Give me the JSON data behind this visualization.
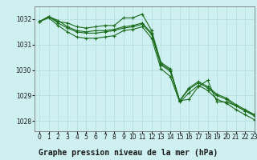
{
  "title": "Graphe pression niveau de la mer (hPa)",
  "background_color": "#cef0f0",
  "grid_color": "#b8e0e0",
  "line_color": "#1a6b1a",
  "marker_color": "#1a6b1a",
  "xlim": [
    -0.5,
    23
  ],
  "ylim": [
    1027.6,
    1032.5
  ],
  "yticks": [
    1028,
    1029,
    1030,
    1031,
    1032
  ],
  "xticks": [
    0,
    1,
    2,
    3,
    4,
    5,
    6,
    7,
    8,
    9,
    10,
    11,
    12,
    13,
    14,
    15,
    16,
    17,
    18,
    19,
    20,
    21,
    22,
    23
  ],
  "series1": [
    1031.9,
    1032.1,
    1031.9,
    1031.85,
    1031.7,
    1031.65,
    1031.7,
    1031.75,
    1031.75,
    1032.05,
    1032.05,
    1032.2,
    1031.55,
    1030.3,
    1030.05,
    1028.8,
    1028.85,
    1029.35,
    1029.6,
    1028.75,
    1028.75,
    1028.6,
    1028.4,
    1028.25
  ],
  "series2": [
    1031.9,
    1032.1,
    1031.95,
    1031.7,
    1031.55,
    1031.5,
    1031.55,
    1031.55,
    1031.6,
    1031.7,
    1031.75,
    1031.85,
    1031.45,
    1030.25,
    1030.0,
    1028.8,
    1029.3,
    1029.55,
    1029.35,
    1029.05,
    1028.9,
    1028.65,
    1028.45,
    1028.25
  ],
  "series3": [
    1031.9,
    1032.1,
    1031.85,
    1031.65,
    1031.5,
    1031.45,
    1031.45,
    1031.5,
    1031.55,
    1031.65,
    1031.7,
    1031.8,
    1031.4,
    1030.2,
    1029.95,
    1028.8,
    1029.25,
    1029.5,
    1029.3,
    1029.0,
    1028.85,
    1028.6,
    1028.4,
    1028.2
  ],
  "series4": [
    1031.9,
    1032.05,
    1031.75,
    1031.5,
    1031.3,
    1031.25,
    1031.25,
    1031.3,
    1031.35,
    1031.55,
    1031.6,
    1031.7,
    1031.25,
    1030.05,
    1029.75,
    1028.75,
    1029.1,
    1029.4,
    1029.2,
    1028.85,
    1028.7,
    1028.45,
    1028.25,
    1028.05
  ],
  "title_bar_color": "#cef0f0",
  "title_fontsize": 7,
  "tick_fontsize": 5.5,
  "lw": 0.8,
  "marker_size": 3.0
}
